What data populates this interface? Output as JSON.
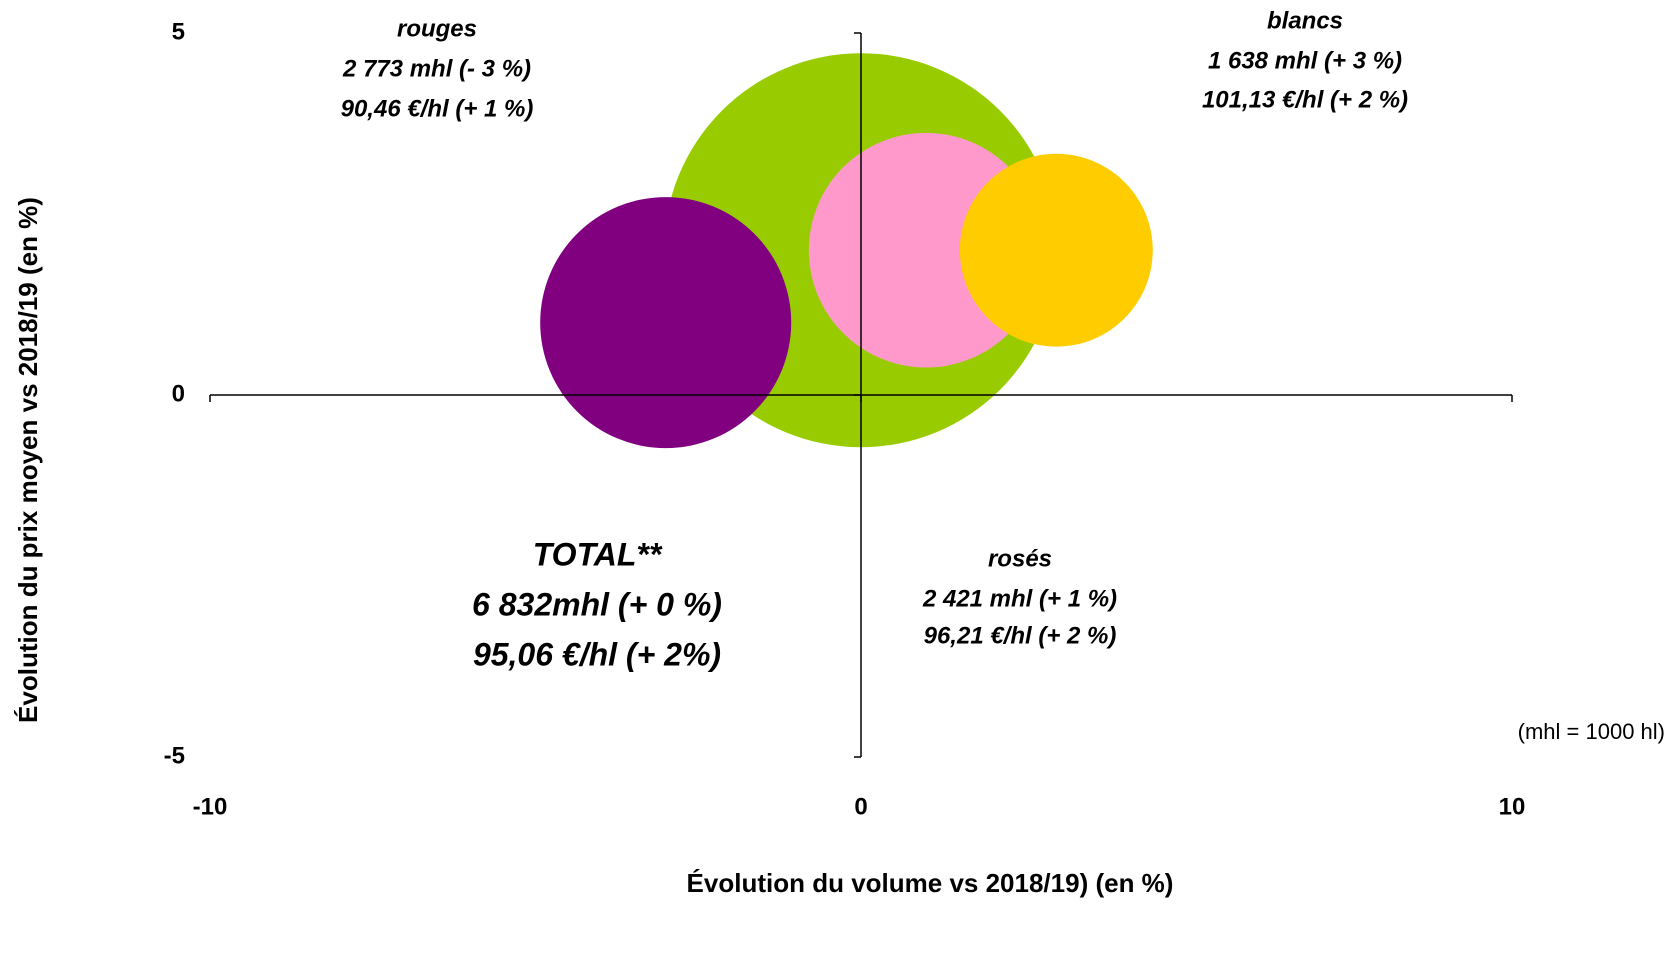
{
  "chart_data": {
    "type": "bubble",
    "xlabel": "Évolution du volume vs 2018/19) (en %)",
    "ylabel": "Évolution du prix moyen vs 2018/19 (en %)",
    "xlim": [
      -10,
      10
    ],
    "xticks": [
      -10,
      0,
      10
    ],
    "ylim": [
      -5,
      5
    ],
    "yticks": [
      -5,
      0,
      5
    ],
    "note": "(mhl = 1000 hl)",
    "series": [
      {
        "name": "TOTAL**",
        "color": "#99cc00",
        "x": 0,
        "y": 2,
        "size": 6832,
        "label": [
          "6 832mhl (+ 0 %)",
          "95,06 €/hl (+ 2%)"
        ]
      },
      {
        "name": "rosés",
        "color": "#ff99cc",
        "x": 1,
        "y": 2,
        "size": 2421,
        "label": [
          "2 421 mhl (+ 1 %)",
          "96,21 €/hl (+ 2 %)"
        ]
      },
      {
        "name": "blancs",
        "color": "#ffcc00",
        "x": 3,
        "y": 2,
        "size": 1638,
        "label": [
          "1 638 mhl (+ 3 %)",
          "101,13 €/hl (+ 2 %)"
        ]
      },
      {
        "name": "rouges",
        "color": "#800080",
        "x": -3,
        "y": 1,
        "size": 2773,
        "label": [
          "2 773 mhl (- 3 %)",
          "90,46 €/hl (+ 1 %)"
        ]
      }
    ]
  }
}
